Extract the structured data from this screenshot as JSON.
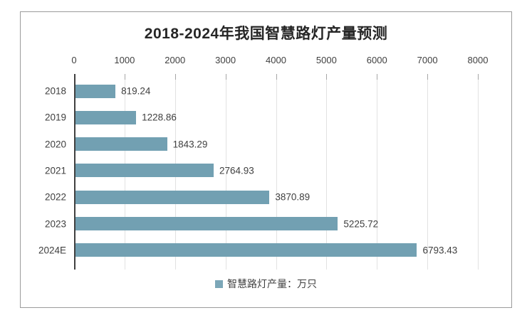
{
  "chart_data": {
    "type": "bar",
    "orientation": "horizontal",
    "title": "2018-2024年我国智慧路灯产量预测",
    "categories": [
      "2018",
      "2019",
      "2020",
      "2021",
      "2022",
      "2023",
      "2024E"
    ],
    "values": [
      819.24,
      1228.86,
      1843.29,
      2764.93,
      3870.89,
      5225.72,
      6793.43
    ],
    "value_labels": [
      "819.24",
      "1228.86",
      "1843.29",
      "2764.93",
      "3870.89",
      "5225.72",
      "6793.43"
    ],
    "xlim": [
      0,
      8000
    ],
    "xticks": [
      0,
      1000,
      2000,
      3000,
      4000,
      5000,
      6000,
      7000,
      8000
    ],
    "xlabel": "",
    "ylabel": "",
    "grid": true,
    "legend_position": "bottom",
    "legend": [
      "智慧路灯产量：万只"
    ],
    "unit": "万只"
  },
  "style": {
    "bar_color": "#72a0b2",
    "legend_swatch_color": "#7ca7b8",
    "axis_line_color": "#404040",
    "gridline_color": "#e2e2e2",
    "tick_mark_color": "#a6a6a6",
    "text_color": "#3f3f3f",
    "title_color": "#262626",
    "frame_border_color": "#9b9b9b"
  },
  "layout_text": {
    "window_title": ""
  }
}
